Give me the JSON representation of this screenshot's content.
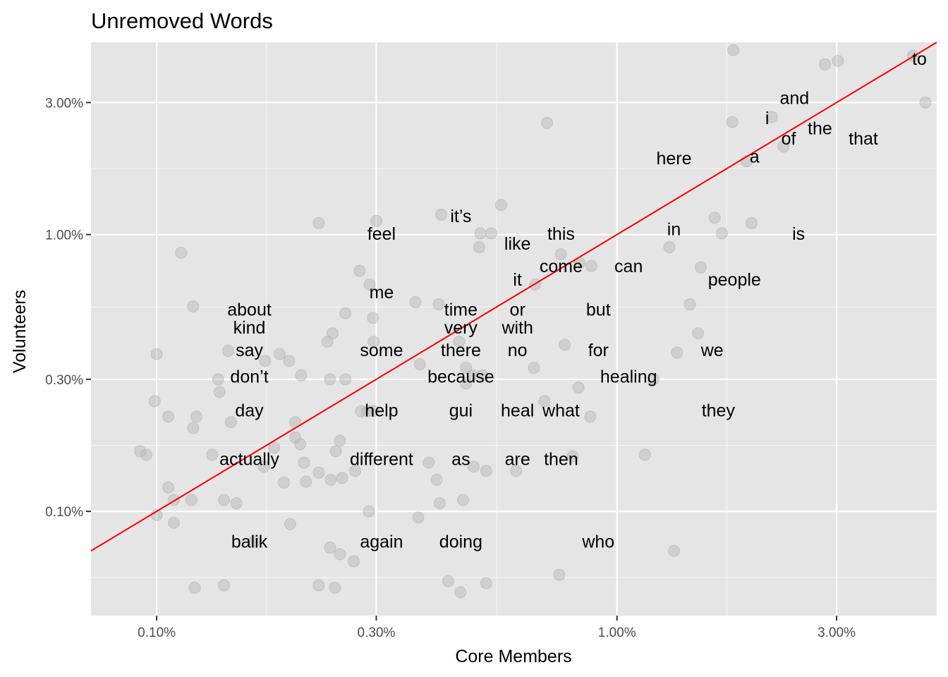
{
  "chart_data": {
    "type": "scatter",
    "title": "Unremoved Words",
    "xlabel": "Core Members",
    "ylabel": "Volunteers",
    "x_scale": "log10",
    "y_scale": "log10",
    "xlim": [
      0.072,
      4.95
    ],
    "ylim": [
      0.042,
      4.95
    ],
    "x_ticks": [
      {
        "value": 0.1,
        "label": "0.10%"
      },
      {
        "value": 0.3,
        "label": "0.30%"
      },
      {
        "value": 1.0,
        "label": "1.00%"
      },
      {
        "value": 3.0,
        "label": "3.00%"
      }
    ],
    "y_ticks": [
      {
        "value": 0.1,
        "label": "0.10%"
      },
      {
        "value": 0.3,
        "label": "0.30%"
      },
      {
        "value": 1.0,
        "label": "1.00%"
      },
      {
        "value": 3.0,
        "label": "3.00%"
      }
    ],
    "reference_line": {
      "slope": 1,
      "intercept": 0,
      "color": "#ff0000"
    },
    "grid": true,
    "colors": {
      "panel": "#e5e5e5",
      "grid": "#ffffff",
      "point": "#b3b3b3",
      "line": "#ff0000"
    },
    "words": [
      {
        "word": "to",
        "x": 4.54,
        "y": 4.32
      },
      {
        "word": "and",
        "x": 2.43,
        "y": 3.12
      },
      {
        "word": "i",
        "x": 2.12,
        "y": 2.64
      },
      {
        "word": "the",
        "x": 2.76,
        "y": 2.43
      },
      {
        "word": "of",
        "x": 2.36,
        "y": 2.23
      },
      {
        "word": "that",
        "x": 3.43,
        "y": 2.23
      },
      {
        "word": "a",
        "x": 1.99,
        "y": 1.92
      },
      {
        "word": "here",
        "x": 1.33,
        "y": 1.89
      },
      {
        "word": "it’s",
        "x": 0.458,
        "y": 1.17
      },
      {
        "word": "in",
        "x": 1.33,
        "y": 1.05
      },
      {
        "word": "feel",
        "x": 0.308,
        "y": 1.01
      },
      {
        "word": "this",
        "x": 0.756,
        "y": 1.01
      },
      {
        "word": "is",
        "x": 2.48,
        "y": 1.01
      },
      {
        "word": "like",
        "x": 0.608,
        "y": 0.93
      },
      {
        "word": "come",
        "x": 0.756,
        "y": 0.77
      },
      {
        "word": "can",
        "x": 1.06,
        "y": 0.77
      },
      {
        "word": "it",
        "x": 0.608,
        "y": 0.69
      },
      {
        "word": "people",
        "x": 1.8,
        "y": 0.69
      },
      {
        "word": "me",
        "x": 0.308,
        "y": 0.62
      },
      {
        "word": "about",
        "x": 0.159,
        "y": 0.537
      },
      {
        "word": "time",
        "x": 0.458,
        "y": 0.537
      },
      {
        "word": "or",
        "x": 0.608,
        "y": 0.537
      },
      {
        "word": "but",
        "x": 0.911,
        "y": 0.537
      },
      {
        "word": "kind",
        "x": 0.159,
        "y": 0.463
      },
      {
        "word": "very",
        "x": 0.458,
        "y": 0.463
      },
      {
        "word": "with",
        "x": 0.608,
        "y": 0.463
      },
      {
        "word": "say",
        "x": 0.159,
        "y": 0.384
      },
      {
        "word": "some",
        "x": 0.308,
        "y": 0.384
      },
      {
        "word": "there",
        "x": 0.458,
        "y": 0.384
      },
      {
        "word": "no",
        "x": 0.608,
        "y": 0.384
      },
      {
        "word": "for",
        "x": 0.911,
        "y": 0.384
      },
      {
        "word": "we",
        "x": 1.61,
        "y": 0.384
      },
      {
        "word": "don’t",
        "x": 0.159,
        "y": 0.308
      },
      {
        "word": "because",
        "x": 0.458,
        "y": 0.308
      },
      {
        "word": "healing",
        "x": 1.06,
        "y": 0.308
      },
      {
        "word": "day",
        "x": 0.159,
        "y": 0.232
      },
      {
        "word": "help",
        "x": 0.308,
        "y": 0.232
      },
      {
        "word": "gui",
        "x": 0.458,
        "y": 0.232
      },
      {
        "word": "heal",
        "x": 0.608,
        "y": 0.232
      },
      {
        "word": "what",
        "x": 0.756,
        "y": 0.232
      },
      {
        "word": "they",
        "x": 1.66,
        "y": 0.232
      },
      {
        "word": "actually",
        "x": 0.159,
        "y": 0.155
      },
      {
        "word": "different",
        "x": 0.308,
        "y": 0.155
      },
      {
        "word": "as",
        "x": 0.458,
        "y": 0.155
      },
      {
        "word": "are",
        "x": 0.608,
        "y": 0.155
      },
      {
        "word": "then",
        "x": 0.756,
        "y": 0.155
      },
      {
        "word": "balik",
        "x": 0.159,
        "y": 0.078
      },
      {
        "word": "again",
        "x": 0.308,
        "y": 0.078
      },
      {
        "word": "doing",
        "x": 0.458,
        "y": 0.078
      },
      {
        "word": "who",
        "x": 0.911,
        "y": 0.078
      }
    ],
    "points": [
      [
        1.79,
        4.64
      ],
      [
        4.4,
        4.42
      ],
      [
        3.02,
        4.24
      ],
      [
        2.83,
        4.12
      ],
      [
        4.68,
        3.0
      ],
      [
        2.17,
        2.66
      ],
      [
        1.78,
        2.55
      ],
      [
        0.705,
        2.53
      ],
      [
        2.3,
        2.08
      ],
      [
        1.91,
        1.84
      ],
      [
        0.56,
        1.28
      ],
      [
        0.415,
        1.18
      ],
      [
        0.3,
        1.12
      ],
      [
        0.225,
        1.1
      ],
      [
        1.63,
        1.15
      ],
      [
        1.96,
        1.1
      ],
      [
        0.533,
        1.01
      ],
      [
        0.505,
        1.01
      ],
      [
        1.69,
        1.01
      ],
      [
        0.502,
        0.9
      ],
      [
        1.3,
        0.9
      ],
      [
        0.755,
        0.85
      ],
      [
        0.113,
        0.86
      ],
      [
        0.83,
        0.79
      ],
      [
        0.88,
        0.77
      ],
      [
        1.52,
        0.76
      ],
      [
        0.276,
        0.74
      ],
      [
        0.29,
        0.66
      ],
      [
        0.664,
        0.66
      ],
      [
        0.365,
        0.57
      ],
      [
        0.41,
        0.56
      ],
      [
        0.257,
        0.52
      ],
      [
        1.44,
        0.56
      ],
      [
        0.12,
        0.55
      ],
      [
        0.295,
        0.5
      ],
      [
        0.241,
        0.44
      ],
      [
        0.235,
        0.41
      ],
      [
        0.296,
        0.41
      ],
      [
        0.454,
        0.41
      ],
      [
        0.77,
        0.4
      ],
      [
        0.1,
        0.37
      ],
      [
        0.143,
        0.38
      ],
      [
        0.172,
        0.35
      ],
      [
        0.185,
        0.37
      ],
      [
        0.373,
        0.34
      ],
      [
        0.47,
        0.33
      ],
      [
        0.485,
        0.31
      ],
      [
        0.51,
        0.31
      ],
      [
        0.66,
        0.33
      ],
      [
        1.35,
        0.375
      ],
      [
        0.194,
        0.35
      ],
      [
        1.5,
        0.44
      ],
      [
        0.206,
        0.31
      ],
      [
        0.238,
        0.3
      ],
      [
        0.257,
        0.3
      ],
      [
        0.136,
        0.3
      ],
      [
        0.825,
        0.28
      ],
      [
        1.2,
        0.3
      ],
      [
        0.47,
        0.29
      ],
      [
        0.137,
        0.27
      ],
      [
        0.099,
        0.25
      ],
      [
        0.106,
        0.22
      ],
      [
        0.122,
        0.22
      ],
      [
        0.696,
        0.25
      ],
      [
        0.145,
        0.21
      ],
      [
        0.2,
        0.21
      ],
      [
        0.278,
        0.23
      ],
      [
        0.296,
        0.23
      ],
      [
        0.287,
        0.23
      ],
      [
        0.875,
        0.22
      ],
      [
        0.12,
        0.2
      ],
      [
        0.2,
        0.185
      ],
      [
        0.18,
        0.17
      ],
      [
        0.205,
        0.175
      ],
      [
        0.25,
        0.18
      ],
      [
        0.092,
        0.165
      ],
      [
        0.095,
        0.16
      ],
      [
        0.132,
        0.16
      ],
      [
        0.171,
        0.145
      ],
      [
        0.209,
        0.15
      ],
      [
        0.245,
        0.165
      ],
      [
        0.39,
        0.15
      ],
      [
        0.488,
        0.145
      ],
      [
        0.52,
        0.14
      ],
      [
        0.604,
        0.14
      ],
      [
        1.15,
        0.16
      ],
      [
        0.802,
        0.158
      ],
      [
        0.225,
        0.138
      ],
      [
        0.239,
        0.13
      ],
      [
        0.253,
        0.132
      ],
      [
        0.27,
        0.14
      ],
      [
        0.211,
        0.128
      ],
      [
        0.189,
        0.127
      ],
      [
        0.106,
        0.122
      ],
      [
        0.406,
        0.13
      ],
      [
        0.119,
        0.11
      ],
      [
        0.109,
        0.11
      ],
      [
        0.149,
        0.107
      ],
      [
        0.14,
        0.11
      ],
      [
        0.412,
        0.107
      ],
      [
        0.463,
        0.11
      ],
      [
        0.289,
        0.1
      ],
      [
        0.1,
        0.097
      ],
      [
        0.195,
        0.09
      ],
      [
        0.37,
        0.095
      ],
      [
        0.109,
        0.091
      ],
      [
        0.163,
        0.078
      ],
      [
        0.238,
        0.074
      ],
      [
        0.25,
        0.07
      ],
      [
        1.33,
        0.072
      ],
      [
        0.268,
        0.066
      ],
      [
        0.749,
        0.059
      ],
      [
        0.43,
        0.056
      ],
      [
        0.52,
        0.055
      ],
      [
        0.14,
        0.054
      ],
      [
        0.225,
        0.054
      ],
      [
        0.244,
        0.053
      ],
      [
        0.121,
        0.053
      ],
      [
        0.457,
        0.051
      ]
    ]
  }
}
